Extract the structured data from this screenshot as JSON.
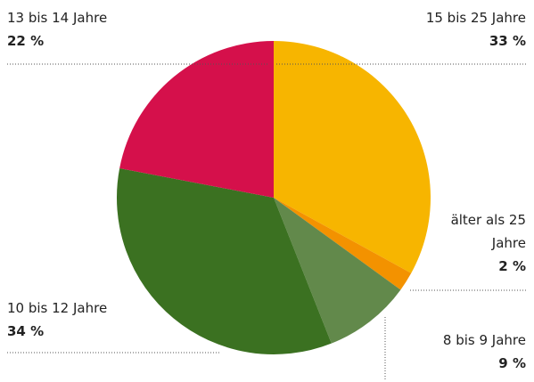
{
  "chart_data": {
    "type": "pie",
    "categories": [
      "15 bis 25 Jahre",
      "älter als 25 Jahre",
      "8 bis 9 Jahre",
      "10 bis 12 Jahre",
      "13 bis 14 Jahre"
    ],
    "values": [
      33,
      2,
      9,
      34,
      22
    ],
    "value_labels": [
      "33 %",
      "2 %",
      "9 %",
      "34 %",
      "22 %"
    ],
    "colors": [
      "#f7b500",
      "#f39200",
      "#62894b",
      "#3b7121",
      "#d5104b"
    ]
  }
}
